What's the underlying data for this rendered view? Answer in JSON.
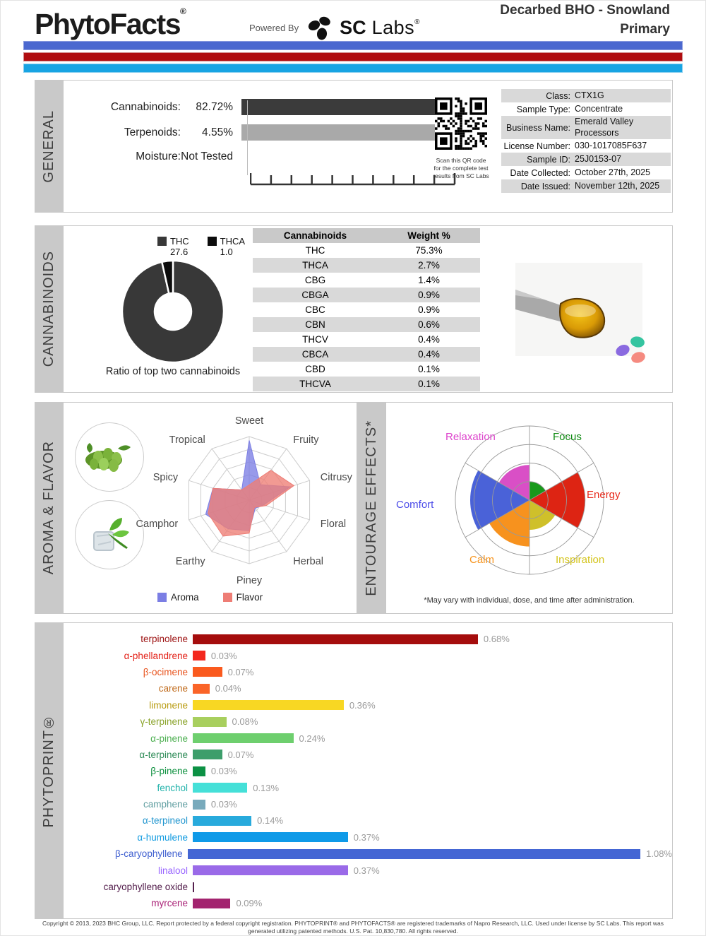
{
  "header": {
    "brand": "PhytoFacts",
    "brand_reg": "®",
    "powered_by": "Powered By",
    "lab_bold": "SC",
    "lab_rest": " Labs",
    "lab_reg": "®",
    "title_line1": "Decarbed BHO - Snowland",
    "title_line2": "Primary",
    "stripe_colors": [
      "#4b68cf",
      "#b00d10",
      "#18a4e3"
    ]
  },
  "sections": {
    "general": "GENERAL",
    "cannabinoids": "CANNABINOIDS",
    "aroma_flavor": "AROMA & FLAVOR",
    "entourage": "ENTOURAGE EFFECTS*",
    "phytoprint": "PHYTOPRINT®"
  },
  "general": {
    "measures": [
      {
        "label": "Cannabinoids:",
        "value": "82.72%",
        "bar_color": "#3b3b3b"
      },
      {
        "label": "Terpenoids:",
        "value": "4.55%",
        "bar_color": "#a9a9a9"
      },
      {
        "label": "Moisture:",
        "value": "Not Tested",
        "bar_color": null
      }
    ],
    "qr_caption": "Scan this QR code\nfor the complete test\nresults from SC Labs",
    "info_table": [
      {
        "label": "Class:",
        "value": "CTX1G"
      },
      {
        "label": "Sample Type:",
        "value": "Concentrate"
      },
      {
        "label": "Business Name:",
        "value": "Emerald Valley Processors"
      },
      {
        "label": "License Number:",
        "value": "030-1017085F637"
      },
      {
        "label": "Sample ID:",
        "value": "25J0153-07"
      },
      {
        "label": "Date Collected:",
        "value": "October 27th, 2025"
      },
      {
        "label": "Date Issued:",
        "value": "November 12th, 2025"
      }
    ]
  },
  "chart_data": [
    {
      "type": "pie",
      "title": "Ratio of top two cannabinoids",
      "labels": [
        "THC",
        "THCA"
      ],
      "values": [
        27.6,
        1.0
      ],
      "value_labels": [
        "27.6",
        "1.0"
      ],
      "colors": [
        "#383838",
        "#0c0c0c"
      ],
      "donut": true
    },
    {
      "type": "table",
      "columns": [
        "Cannabinoids",
        "Weight %"
      ],
      "rows": [
        [
          "THC",
          "75.3%"
        ],
        [
          "THCA",
          "2.7%"
        ],
        [
          "CBG",
          "1.4%"
        ],
        [
          "CBGA",
          "0.9%"
        ],
        [
          "CBC",
          "0.9%"
        ],
        [
          "CBN",
          "0.6%"
        ],
        [
          "THCV",
          "0.4%"
        ],
        [
          "CBCA",
          "0.4%"
        ],
        [
          "CBD",
          "0.1%"
        ],
        [
          "THCVA",
          "0.1%"
        ]
      ]
    },
    {
      "type": "radar",
      "categories": [
        "Sweet",
        "Fruity",
        "Citrusy",
        "Floral",
        "Herbal",
        "Piney",
        "Earthy",
        "Camphor",
        "Spicy",
        "Tropical"
      ],
      "scale_max": 5,
      "series": [
        {
          "name": "Aroma",
          "color": "#7b7ee4",
          "values": [
            4.7,
            1.5,
            3.4,
            1.2,
            0.8,
            2.4,
            2.8,
            3.6,
            3.0,
            1.0
          ]
        },
        {
          "name": "Flavor",
          "color": "#ee7d75",
          "values": [
            1.2,
            2.9,
            3.7,
            1.4,
            0.7,
            2.6,
            3.5,
            3.4,
            3.0,
            1.0
          ]
        }
      ],
      "legend_position": "bottom"
    },
    {
      "type": "polar-wedge",
      "note": "*May vary with individual, dose, and time after administration.",
      "scale_max": 4,
      "wedges": [
        {
          "name": "Focus",
          "value": 1.0,
          "color": "#18991b",
          "label_color": "#0f8a12"
        },
        {
          "name": "Energy",
          "value": 3.0,
          "color": "#dd2413",
          "label_color": "#e8291a"
        },
        {
          "name": "Inspiration",
          "value": 1.6,
          "color": "#cfc02a",
          "label_color": "#d4c41c"
        },
        {
          "name": "Calm",
          "value": 2.5,
          "color": "#f7921e",
          "label_color": "#f7941d"
        },
        {
          "name": "Comfort",
          "value": 3.2,
          "color": "#4a62d8",
          "label_color": "#4a4ae8"
        },
        {
          "name": "Relaxation",
          "value": 1.9,
          "color": "#d94fc6",
          "label_color": "#dd44cc"
        }
      ]
    },
    {
      "type": "bar",
      "orientation": "horizontal",
      "xlim": [
        0,
        1.15
      ],
      "bars": [
        {
          "name": "terpinolene",
          "value": 0.68,
          "label": "0.68%",
          "bar_color": "#a50d0d",
          "name_color": "#9c1010"
        },
        {
          "name": "α-phellandrene",
          "value": 0.03,
          "label": "0.03%",
          "bar_color": "#f3281e",
          "name_color": "#e32219"
        },
        {
          "name": "β-ocimene",
          "value": 0.07,
          "label": "0.07%",
          "bar_color": "#fa5a1e",
          "name_color": "#e8541e"
        },
        {
          "name": "carene",
          "value": 0.04,
          "label": "0.04%",
          "bar_color": "#fa6428",
          "name_color": "#c06a1a"
        },
        {
          "name": "limonene",
          "value": 0.36,
          "label": "0.36%",
          "bar_color": "#f8d723",
          "name_color": "#b89b10"
        },
        {
          "name": "γ-terpinene",
          "value": 0.08,
          "label": "0.08%",
          "bar_color": "#a8cf5e",
          "name_color": "#8aa32a"
        },
        {
          "name": "α-pinene",
          "value": 0.24,
          "label": "0.24%",
          "bar_color": "#6ecf6e",
          "name_color": "#4caf50"
        },
        {
          "name": "α-terpinene",
          "value": 0.07,
          "label": "0.07%",
          "bar_color": "#3d9e6b",
          "name_color": "#2e8b57"
        },
        {
          "name": "β-pinene",
          "value": 0.03,
          "label": "0.03%",
          "bar_color": "#0c9144",
          "name_color": "#0a8f3c"
        },
        {
          "name": "fenchol",
          "value": 0.13,
          "label": "0.13%",
          "bar_color": "#45e0d8",
          "name_color": "#20b2aa"
        },
        {
          "name": "camphene",
          "value": 0.03,
          "label": "0.03%",
          "bar_color": "#78aabc",
          "name_color": "#5f9ea0"
        },
        {
          "name": "α-terpineol",
          "value": 0.14,
          "label": "0.14%",
          "bar_color": "#28aadc",
          "name_color": "#2196cf"
        },
        {
          "name": "α-humulene",
          "value": 0.37,
          "label": "0.37%",
          "bar_color": "#0f9ae8",
          "name_color": "#0f9ae0"
        },
        {
          "name": "β-caryophyllene",
          "value": 1.08,
          "label": "1.08%",
          "bar_color": "#4466d4",
          "name_color": "#3f5fd0"
        },
        {
          "name": "linalool",
          "value": 0.37,
          "label": "0.37%",
          "bar_color": "#9a6ae8",
          "name_color": "#9966ff"
        },
        {
          "name": "caryophyllene oxide",
          "value": 0.0,
          "label": "",
          "bar_color": "#55204e",
          "name_color": "#55204e"
        },
        {
          "name": "myrcene",
          "value": 0.09,
          "label": "0.09%",
          "bar_color": "#a3246f",
          "name_color": "#aa2277"
        }
      ]
    }
  ],
  "footer": {
    "line": "Copyright © 2013, 2023 BHC Group, LLC. Report protected by a federal copyright registration. PHYTOPRINT® and PHYTOFACTS® are registered trademarks of Napro Research, LLC. Used under license by SC Labs. This report was generated utilizing patented methods. U.S. Pat. 10,830,780. All rights reserved."
  }
}
